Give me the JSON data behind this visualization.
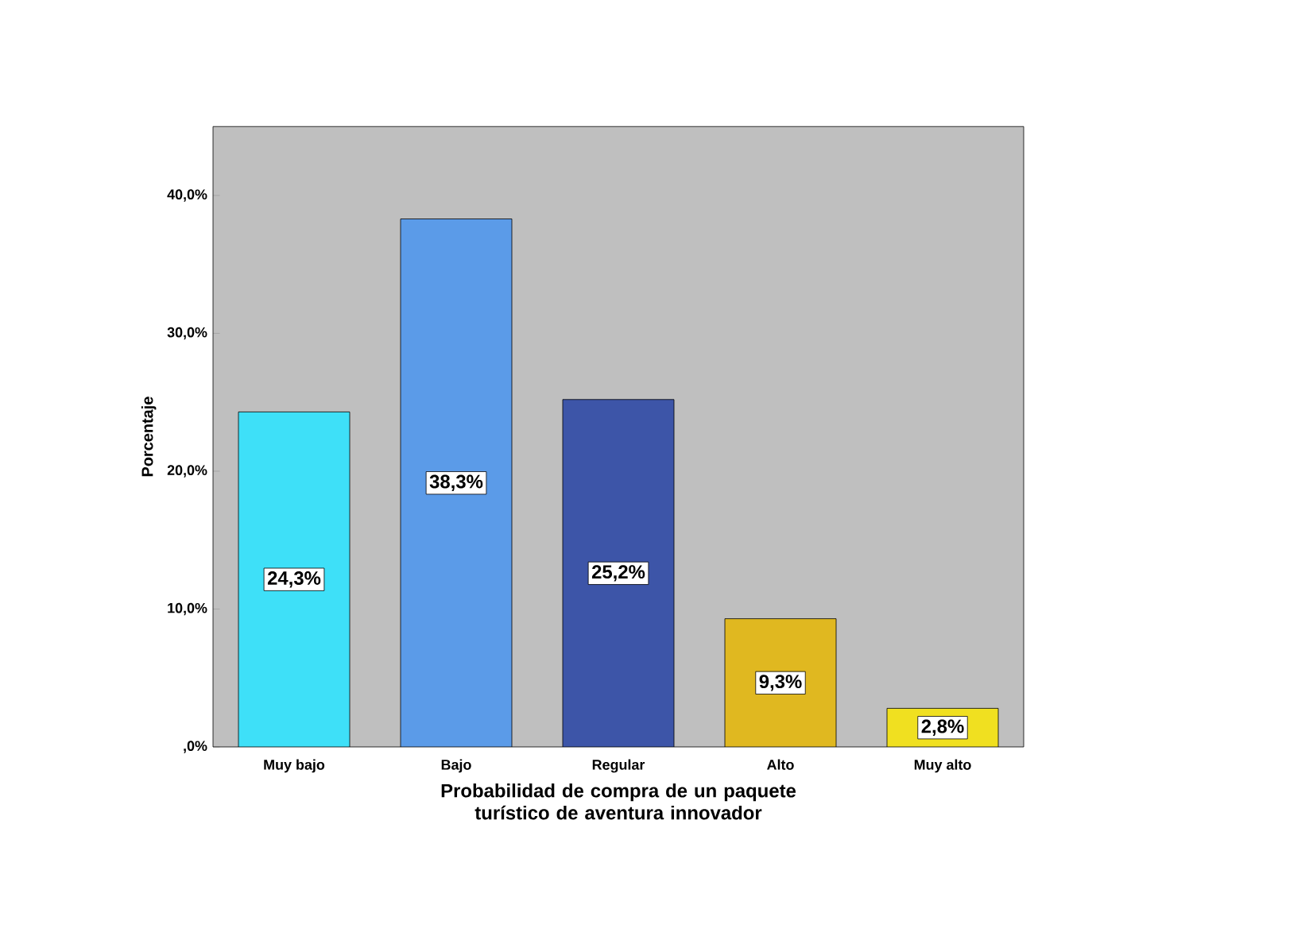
{
  "chart_data": {
    "type": "bar",
    "xlabel": "Probabilidad de compra de un paquete turístico de aventura innovador",
    "ylabel": "Porcentaje",
    "categories": [
      "Muy bajo",
      "Bajo",
      "Regular",
      "Alto",
      "Muy alto"
    ],
    "values": [
      24.3,
      38.3,
      25.2,
      9.3,
      2.8
    ],
    "value_labels": [
      "24,3%",
      "38,3%",
      "25,2%",
      "9,3%",
      "2,8%"
    ],
    "colors": [
      "#3ee0f8",
      "#5b9be8",
      "#3d55a8",
      "#e0b820",
      "#f0e020"
    ],
    "ylim": [
      0,
      45
    ],
    "yticks": [
      {
        "value": 0,
        "label": ",0%"
      },
      {
        "value": 10,
        "label": "10,0%"
      },
      {
        "value": 20,
        "label": "20,0%"
      },
      {
        "value": 30,
        "label": "30,0%"
      },
      {
        "value": 40,
        "label": "40,0%"
      }
    ]
  }
}
